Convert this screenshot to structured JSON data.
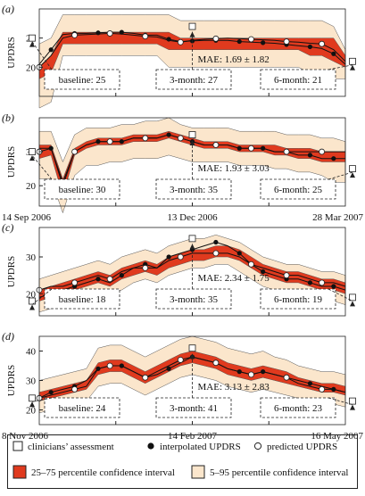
{
  "chart_data": [
    {
      "type": "line",
      "panel": "(a)",
      "ylabel": "UPDRS",
      "ylim": [
        15,
        30
      ],
      "yticks": [
        20,
        25
      ],
      "x": [
        0,
        4,
        8,
        12,
        16,
        20,
        24,
        28,
        32,
        36,
        40,
        44,
        48,
        52,
        56,
        60,
        64,
        68,
        72,
        76,
        80,
        84,
        88,
        92,
        96,
        100,
        104
      ],
      "band95_low": [
        13,
        14,
        22,
        22,
        22,
        22,
        22,
        22,
        22,
        22,
        22,
        20,
        20,
        20,
        20,
        20,
        20,
        20,
        20,
        20,
        20,
        20,
        20,
        19,
        19,
        18,
        18
      ],
      "band95_high": [
        24,
        25,
        29,
        29,
        29,
        29,
        29,
        29,
        29,
        29,
        29,
        29,
        28,
        28,
        28,
        28,
        28,
        28,
        28,
        28,
        28,
        28,
        28,
        28,
        28,
        27,
        23
      ],
      "band75_low": [
        18,
        19,
        24,
        24,
        24,
        24,
        24,
        24,
        24,
        24,
        24,
        23,
        23,
        23,
        23,
        23,
        23,
        23,
        23,
        23,
        23,
        23,
        23,
        22,
        22,
        21,
        20
      ],
      "band75_high": [
        20,
        22,
        26,
        26,
        26,
        26,
        26,
        26,
        26,
        26,
        26,
        26,
        25,
        25,
        25,
        25,
        25,
        25,
        25,
        25,
        25,
        25,
        25,
        25,
        25,
        25,
        22
      ],
      "series": [
        {
          "values": [
            20.5,
            23,
            25.6,
            25.8,
            25.8,
            25.9,
            26,
            26,
            25.8,
            25.5,
            25.5,
            24.8,
            24.4,
            24.5,
            24.6,
            24.6,
            24.6,
            24.4,
            24.3,
            24.2,
            24.1,
            23.9,
            23.7,
            23.5,
            23.2,
            22.3,
            20.5
          ]
        },
        {
          "values": [
            20,
            22,
            25,
            25.5,
            25.6,
            25.7,
            25.8,
            25.7,
            25.5,
            25.3,
            25.2,
            24.6,
            24.3,
            24.6,
            24.8,
            24.9,
            25,
            24.9,
            24.8,
            24.7,
            24.6,
            24.4,
            24.3,
            24.1,
            24,
            23,
            21
          ]
        }
      ],
      "assessments": [
        {
          "x": 0,
          "y": 25
        },
        {
          "x": 52,
          "y": 27
        },
        {
          "x": 104,
          "y": 21
        }
      ],
      "annotations": [
        "baseline: 25",
        "3-month: 27",
        "6-month: 21"
      ],
      "mae": "MAE: 1.69 ± 1.82"
    },
    {
      "type": "line",
      "panel": "(b)",
      "ylabel": "UPDRS",
      "ylim": [
        14,
        40
      ],
      "yticks": [
        20,
        30
      ],
      "xticklabels": [
        "14 Sep 2006",
        "13 Dec 2006",
        "28 Mar 2007"
      ],
      "x": [
        0,
        4,
        8,
        12,
        16,
        20,
        24,
        28,
        32,
        36,
        40,
        44,
        48,
        52,
        56,
        60,
        64,
        68,
        72,
        76,
        80,
        84,
        88,
        92,
        96,
        100,
        104
      ],
      "band95_low": [
        22,
        22,
        12,
        23,
        26,
        26,
        27,
        27,
        28,
        28,
        28,
        29,
        28,
        27,
        27,
        27,
        27,
        26,
        26,
        26,
        25,
        25,
        24,
        24,
        23,
        21,
        21
      ],
      "band95_high": [
        36,
        36,
        27,
        35,
        37,
        37,
        37,
        38,
        38,
        39,
        39,
        40,
        38,
        37,
        37,
        37,
        37,
        36,
        36,
        36,
        36,
        35,
        35,
        35,
        34,
        34,
        33
      ],
      "band75_low": [
        28,
        29,
        17,
        29,
        31,
        32,
        32,
        32,
        33,
        33,
        33,
        34,
        33,
        32,
        31,
        31,
        31,
        30,
        30,
        30,
        29,
        29,
        28,
        28,
        27,
        27,
        27
      ],
      "band75_high": [
        32,
        32,
        22,
        31,
        33,
        34,
        34,
        34,
        35,
        35,
        35,
        36,
        35,
        34,
        33,
        33,
        33,
        32,
        32,
        32,
        32,
        31,
        31,
        31,
        30,
        30,
        30
      ],
      "series": [
        {
          "values": [
            31,
            31,
            20,
            30,
            32,
            33,
            33,
            33,
            34,
            34,
            34,
            35,
            34,
            33,
            32,
            32,
            32,
            31,
            31,
            31,
            30,
            30,
            29,
            29,
            28,
            28,
            28
          ]
        },
        {
          "values": [
            30,
            31,
            21,
            30,
            32,
            33,
            33,
            33,
            34,
            34,
            34,
            35,
            34,
            33,
            32,
            32,
            32,
            31,
            31,
            31,
            30,
            30,
            30,
            30,
            30,
            30,
            30
          ]
        }
      ],
      "assessments": [
        {
          "x": 0,
          "y": 30
        },
        {
          "x": 52,
          "y": 35
        },
        {
          "x": 104,
          "y": 25
        }
      ],
      "annotations": [
        "baseline: 30",
        "3-month: 35",
        "6-month: 25"
      ],
      "mae": "MAE: 1.93 ± 3.03"
    },
    {
      "type": "line",
      "panel": "(c)",
      "ylabel": "UPDRS",
      "ylim": [
        14,
        38
      ],
      "yticks": [
        20,
        30
      ],
      "x": [
        0,
        4,
        8,
        12,
        16,
        20,
        24,
        28,
        32,
        36,
        40,
        44,
        48,
        52,
        56,
        60,
        64,
        68,
        72,
        76,
        80,
        84,
        88,
        92,
        96,
        100,
        104
      ],
      "band95_low": [
        15,
        16,
        17,
        19,
        20,
        21,
        20,
        21,
        23,
        24,
        23,
        25,
        26,
        27,
        27,
        28,
        28,
        26,
        24,
        22,
        21,
        20,
        20,
        19,
        18,
        18,
        17
      ],
      "band95_high": [
        24,
        25,
        26,
        27,
        28,
        29,
        28,
        30,
        31,
        32,
        31,
        33,
        34,
        35,
        35,
        36,
        35,
        34,
        32,
        30,
        29,
        28,
        28,
        27,
        26,
        26,
        25
      ],
      "band75_low": [
        18,
        19,
        20,
        21,
        22,
        23,
        22,
        24,
        25,
        26,
        25,
        27,
        28,
        29,
        29,
        30,
        30,
        29,
        27,
        25,
        24,
        23,
        23,
        22,
        21,
        21,
        20
      ],
      "band75_high": [
        21,
        22,
        23,
        24,
        25,
        26,
        25,
        27,
        28,
        29,
        28,
        30,
        31,
        32,
        32,
        33,
        33,
        32,
        30,
        28,
        27,
        26,
        26,
        25,
        24,
        24,
        23
      ],
      "series": [
        {
          "values": [
            19,
            20,
            21,
            22,
            23,
            24,
            23,
            25,
            27,
            28,
            27,
            30,
            31,
            32,
            33,
            34,
            33,
            31,
            28,
            26,
            25,
            24,
            24,
            23,
            22,
            22,
            21
          ]
        },
        {
          "values": [
            21,
            22,
            22,
            23,
            24,
            25,
            24,
            26,
            27,
            27,
            27,
            29,
            30,
            31,
            31,
            31,
            31,
            30,
            28,
            27,
            26,
            25,
            25,
            24,
            23,
            23,
            22
          ]
        }
      ],
      "assessments": [
        {
          "x": 0,
          "y": 18
        },
        {
          "x": 52,
          "y": 35
        },
        {
          "x": 104,
          "y": 19
        }
      ],
      "annotations": [
        "baseline: 18",
        "3-month: 35",
        "6-month: 19"
      ],
      "mae": "MAE: 2.34 ± 1.75"
    },
    {
      "type": "line",
      "panel": "(d)",
      "ylabel": "UPDRS",
      "ylim": [
        15,
        45
      ],
      "yticks": [
        20,
        30,
        40
      ],
      "xticklabels": [
        "8 Nov 2006",
        "14 Feb 2007",
        "16 May 2007"
      ],
      "x": [
        0,
        4,
        8,
        12,
        16,
        20,
        24,
        28,
        32,
        36,
        40,
        44,
        48,
        52,
        56,
        60,
        64,
        68,
        72,
        76,
        80,
        84,
        88,
        92,
        96,
        100,
        104
      ],
      "band95_low": [
        19,
        20,
        21,
        22,
        23,
        28,
        29,
        29,
        27,
        25,
        27,
        29,
        31,
        32,
        31,
        30,
        28,
        27,
        26,
        27,
        26,
        25,
        24,
        23,
        22,
        22,
        21
      ],
      "band95_high": [
        30,
        31,
        32,
        33,
        34,
        41,
        42,
        42,
        40,
        38,
        40,
        42,
        44,
        45,
        44,
        43,
        41,
        40,
        39,
        40,
        38,
        37,
        35,
        34,
        33,
        33,
        32
      ],
      "band75_low": [
        23,
        24,
        25,
        26,
        27,
        32,
        33,
        33,
        31,
        29,
        31,
        33,
        35,
        36,
        35,
        34,
        32,
        31,
        30,
        31,
        30,
        29,
        28,
        27,
        26,
        26,
        25
      ],
      "band75_high": [
        26,
        27,
        28,
        29,
        30,
        36,
        37,
        37,
        35,
        33,
        35,
        37,
        39,
        40,
        39,
        38,
        36,
        35,
        34,
        35,
        34,
        33,
        31,
        30,
        29,
        29,
        28
      ],
      "series": [
        {
          "values": [
            24,
            26,
            27,
            28,
            30,
            34,
            35,
            35,
            33,
            31,
            32,
            34,
            36,
            38,
            37,
            36,
            34,
            33,
            32,
            33,
            32,
            31,
            30,
            29,
            28,
            27,
            26
          ]
        },
        {
          "values": [
            24,
            25,
            26,
            27,
            28,
            34,
            35,
            35,
            33,
            31,
            33,
            35,
            37,
            38,
            37,
            36,
            34,
            33,
            32,
            33,
            32,
            31,
            29,
            28,
            27,
            27,
            26
          ]
        }
      ],
      "assessments": [
        {
          "x": 0,
          "y": 24
        },
        {
          "x": 52,
          "y": 41
        },
        {
          "x": 104,
          "y": 23
        }
      ],
      "annotations": [
        "baseline: 24",
        "3-month: 41",
        "6-month: 23"
      ],
      "mae": "MAE: 3.13 ± 2.83"
    }
  ],
  "legend": {
    "clinician": "clinicians’ assessment",
    "interpolated": "interpolated UPDRS",
    "predicted": "predicted UPDRS",
    "band75": "25–75 percentile confidence interval",
    "band95": "5–95 percentile confidence interval"
  },
  "colors": {
    "band75": "#e03a1e",
    "band95": "#fbe6cc",
    "line": "#111111"
  }
}
